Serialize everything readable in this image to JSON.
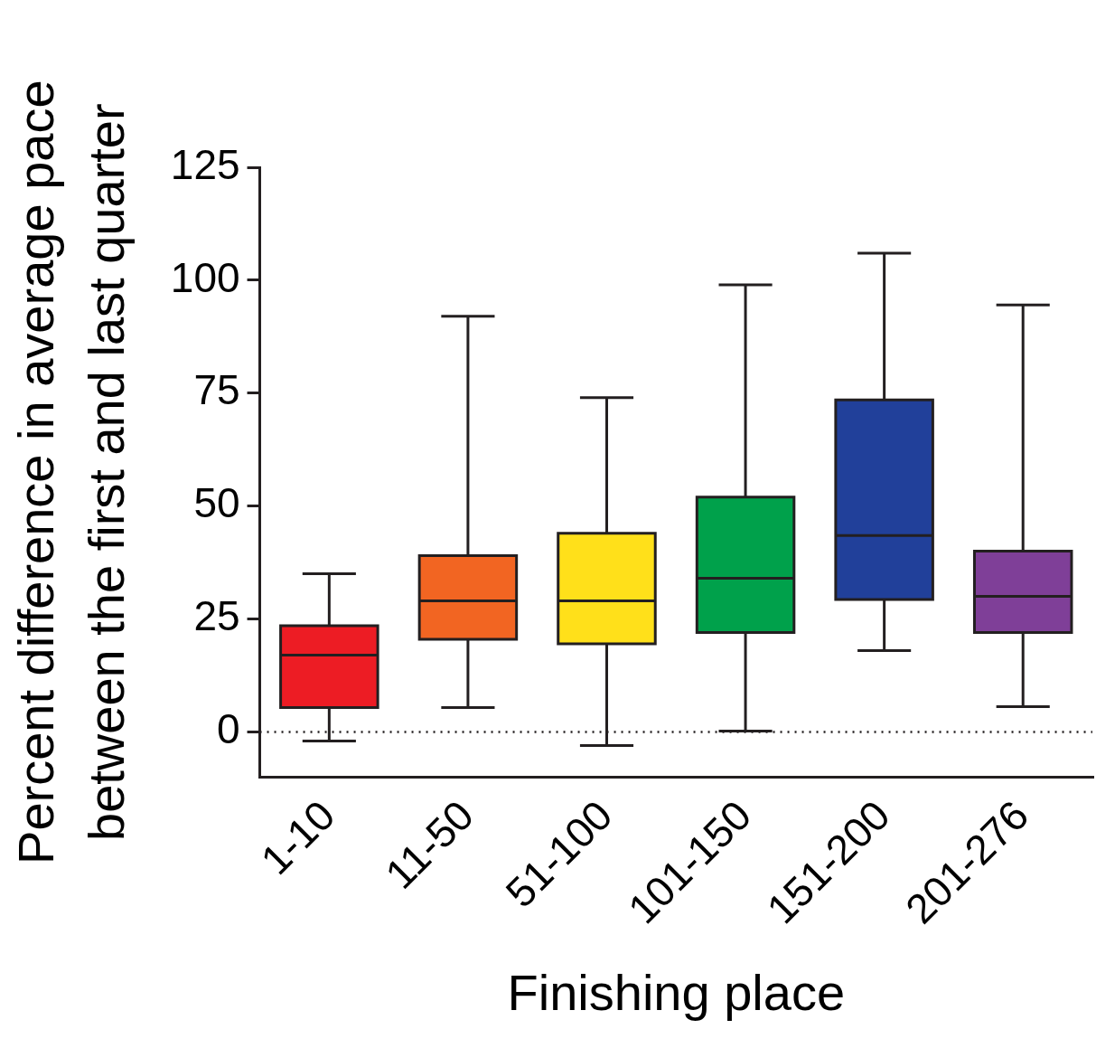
{
  "chart_data": {
    "type": "box",
    "xlabel": "Finishing place",
    "ylabel": "Percent difference in average pace\nbetween the first and last quarter",
    "categories": [
      "1-10",
      "11-50",
      "51-100",
      "101-150",
      "151-200",
      "201-276"
    ],
    "colors": [
      "#ed1c24",
      "#f26522",
      "#ffe01a",
      "#00a14b",
      "#21409a",
      "#7f3f98"
    ],
    "boxes": [
      {
        "low": -2,
        "q1": 5.4,
        "median": 17,
        "q3": 23.5,
        "high": 35
      },
      {
        "low": 5.4,
        "q1": 20.5,
        "median": 29,
        "q3": 39,
        "high": 92
      },
      {
        "low": -3,
        "q1": 19.5,
        "median": 29,
        "q3": 44,
        "high": 74
      },
      {
        "low": 0.2,
        "q1": 22,
        "median": 34,
        "q3": 52,
        "high": 99
      },
      {
        "low": 18,
        "q1": 29.3,
        "median": 43.5,
        "q3": 73.5,
        "high": 106
      },
      {
        "low": 5.6,
        "q1": 22,
        "median": 30,
        "q3": 40,
        "high": 94.5
      }
    ],
    "ylim": [
      -10,
      125
    ],
    "yticks": [
      0,
      25,
      50,
      75,
      100,
      125
    ],
    "grid": false,
    "legend": false,
    "ref_lines": [
      {
        "axis": "y",
        "value": 0,
        "line_style": "dotted",
        "color": "#231f20"
      }
    ]
  }
}
